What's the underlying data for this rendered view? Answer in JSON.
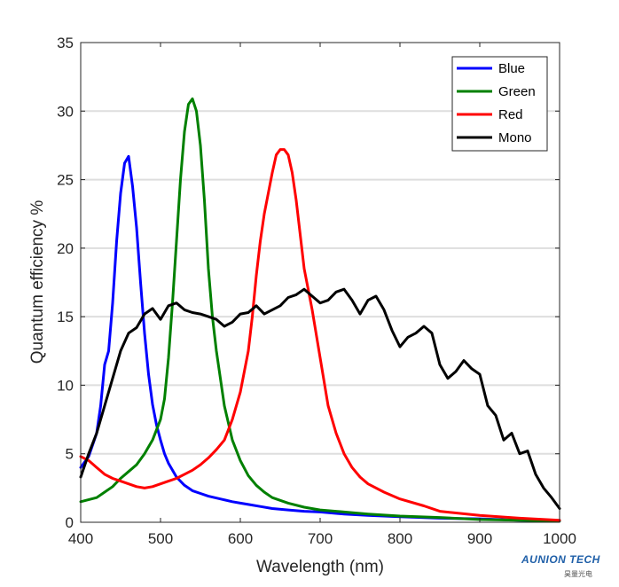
{
  "chart_data": {
    "type": "line",
    "xlabel": "Wavelength (nm)",
    "ylabel": "Quantum efficiency %",
    "xlim": [
      400,
      1000
    ],
    "ylim": [
      0,
      35
    ],
    "xticks": [
      400,
      500,
      600,
      700,
      800,
      900,
      1000
    ],
    "yticks": [
      0,
      5,
      10,
      15,
      20,
      25,
      30,
      35
    ],
    "grid": "horizontal",
    "legend_position": "top-right",
    "series": [
      {
        "name": "Blue",
        "color": "#0000ff",
        "x": [
          400,
          410,
          420,
          425,
          430,
          435,
          440,
          445,
          450,
          455,
          460,
          465,
          470,
          475,
          480,
          485,
          490,
          495,
          500,
          505,
          510,
          515,
          520,
          530,
          540,
          550,
          560,
          575,
          590,
          600,
          610,
          625,
          640,
          660,
          680,
          700,
          730,
          760,
          800,
          850,
          900,
          950,
          1000
        ],
        "y": [
          4.0,
          4.8,
          6.5,
          8.5,
          11.5,
          12.5,
          16.0,
          20.5,
          24.0,
          26.2,
          26.7,
          24.5,
          21.5,
          17.5,
          13.8,
          10.8,
          8.6,
          7.1,
          6.0,
          5.0,
          4.3,
          3.8,
          3.3,
          2.7,
          2.3,
          2.1,
          1.9,
          1.7,
          1.5,
          1.4,
          1.3,
          1.15,
          1.0,
          0.9,
          0.8,
          0.75,
          0.6,
          0.5,
          0.4,
          0.3,
          0.25,
          0.15,
          0.1
        ]
      },
      {
        "name": "Green",
        "color": "#008000",
        "x": [
          400,
          420,
          430,
          440,
          450,
          460,
          470,
          480,
          490,
          500,
          505,
          510,
          515,
          520,
          525,
          530,
          535,
          540,
          545,
          550,
          555,
          560,
          565,
          570,
          575,
          580,
          590,
          600,
          610,
          620,
          630,
          640,
          660,
          680,
          700,
          730,
          760,
          800,
          850,
          900,
          950,
          1000
        ],
        "y": [
          1.5,
          1.8,
          2.2,
          2.6,
          3.2,
          3.7,
          4.2,
          5.0,
          6.0,
          7.5,
          9.0,
          12.0,
          16.0,
          20.5,
          25.0,
          28.5,
          30.5,
          30.9,
          30.0,
          27.5,
          23.5,
          18.5,
          15.0,
          12.5,
          10.5,
          8.5,
          6.0,
          4.5,
          3.4,
          2.7,
          2.2,
          1.8,
          1.4,
          1.1,
          0.9,
          0.75,
          0.6,
          0.45,
          0.35,
          0.2,
          0.15,
          0.1
        ]
      },
      {
        "name": "Red",
        "color": "#ff0000",
        "x": [
          400,
          410,
          420,
          430,
          440,
          450,
          460,
          470,
          480,
          490,
          500,
          510,
          520,
          530,
          540,
          550,
          560,
          570,
          580,
          590,
          600,
          610,
          615,
          620,
          625,
          630,
          635,
          640,
          645,
          650,
          655,
          660,
          665,
          670,
          675,
          680,
          685,
          690,
          700,
          710,
          720,
          730,
          740,
          750,
          760,
          780,
          800,
          830,
          850,
          900,
          950,
          1000
        ],
        "y": [
          4.8,
          4.5,
          4.0,
          3.5,
          3.2,
          3.0,
          2.8,
          2.6,
          2.5,
          2.6,
          2.8,
          3.0,
          3.2,
          3.5,
          3.8,
          4.2,
          4.7,
          5.3,
          6.0,
          7.5,
          9.5,
          12.5,
          15.0,
          18.0,
          20.5,
          22.5,
          24.0,
          25.5,
          26.8,
          27.2,
          27.2,
          26.8,
          25.5,
          23.5,
          21.0,
          18.5,
          17.0,
          15.5,
          12.0,
          8.5,
          6.5,
          5.0,
          4.0,
          3.3,
          2.8,
          2.2,
          1.7,
          1.2,
          0.8,
          0.5,
          0.3,
          0.15
        ]
      },
      {
        "name": "Mono",
        "color": "#000000",
        "x": [
          400,
          410,
          420,
          430,
          440,
          450,
          460,
          470,
          480,
          490,
          500,
          510,
          520,
          530,
          540,
          550,
          560,
          570,
          580,
          590,
          600,
          610,
          620,
          630,
          640,
          650,
          660,
          670,
          680,
          690,
          700,
          710,
          720,
          730,
          740,
          750,
          760,
          770,
          780,
          790,
          800,
          810,
          820,
          830,
          840,
          850,
          860,
          870,
          880,
          890,
          900,
          910,
          920,
          930,
          940,
          950,
          960,
          970,
          980,
          990,
          1000
        ],
        "y": [
          3.3,
          5.0,
          6.5,
          8.5,
          10.5,
          12.5,
          13.8,
          14.2,
          15.2,
          15.6,
          14.8,
          15.8,
          16.0,
          15.5,
          15.3,
          15.2,
          15.0,
          14.8,
          14.3,
          14.6,
          15.2,
          15.3,
          15.8,
          15.2,
          15.5,
          15.8,
          16.4,
          16.6,
          17.0,
          16.5,
          16.0,
          16.2,
          16.8,
          17.0,
          16.2,
          15.2,
          16.2,
          16.5,
          15.5,
          14.0,
          12.8,
          13.5,
          13.8,
          14.3,
          13.8,
          11.5,
          10.5,
          11.0,
          11.8,
          11.2,
          10.8,
          8.5,
          7.8,
          6.0,
          6.5,
          5.0,
          5.2,
          3.5,
          2.5,
          1.8,
          1.0
        ]
      }
    ]
  }
}
